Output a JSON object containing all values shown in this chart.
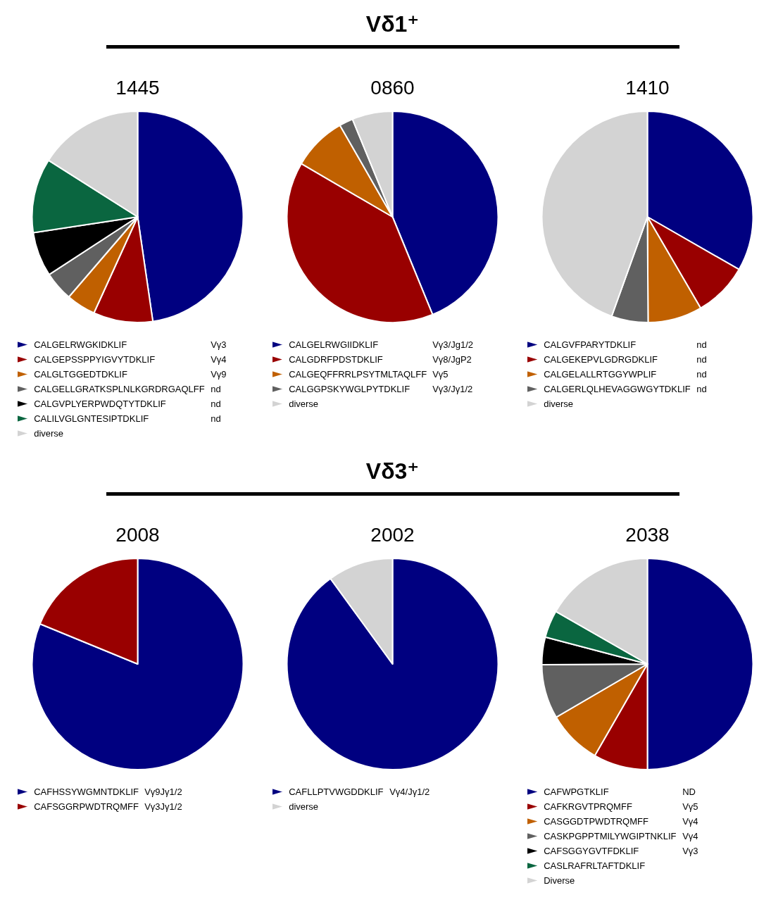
{
  "chart_data": [
    {
      "type": "pie",
      "title": "1445",
      "legend": "bottom",
      "categories": [
        "CALGELRWGKIDKLIF",
        "CALGEPSSPPYIGVYTDKLIF",
        "CALGLTGGEDTDKLIF",
        "CALGELLGRATKSPLNLKGRDRGAQLFF",
        "CALGVPLYERPWDQTYTDKLIF",
        "CALILVGLGNTESIPTDKLIF",
        "diverse"
      ],
      "values": [
        47.7,
        9.1,
        4.5,
        4.5,
        6.8,
        11.4,
        16.0
      ],
      "colors": [
        "#000080",
        "#990000",
        "#c06000",
        "#606060",
        "#000000",
        "#0a6640",
        "#d3d3d3"
      ],
      "annotations": [
        "Vγ3",
        "Vγ4",
        "Vγ9",
        "nd",
        "nd",
        "nd"
      ]
    },
    {
      "type": "pie",
      "subtitle": "Vδ1⁺",
      "title": "0860",
      "legend": "bottom",
      "categories": [
        "CALGELRWGIIDKLIF",
        "CALGDRFPDSTDKLIF",
        "CALGEQFFRRLPSYTMLTAQLFF",
        "CALGGPSKYWGLPYTDKLIF",
        "diverse"
      ],
      "values": [
        43.8,
        39.6,
        8.3,
        2.1,
        6.2
      ],
      "colors": [
        "#000080",
        "#990000",
        "#c06000",
        "#606060",
        "#d3d3d3"
      ],
      "annotations": [
        "Vγ3/Jg1/2",
        "Vγ8/JgP2",
        "Vγ5",
        "Vγ3/Jγ1/2"
      ]
    },
    {
      "type": "pie",
      "title": "1410",
      "legend": "bottom",
      "categories": [
        "CALGVFPARYTDKLIF",
        "CALGEKEPVLGDRGDKLIF",
        "CALGELALLRTGGYWPLIF",
        "CALGERLQLHEVAGGWGYTDKLIF",
        "diverse"
      ],
      "values": [
        33.3,
        8.3,
        8.3,
        5.6,
        44.5
      ],
      "colors": [
        "#000080",
        "#990000",
        "#c06000",
        "#606060",
        "#d3d3d3"
      ],
      "annotations": [
        "nd",
        "nd",
        "nd",
        "nd"
      ]
    },
    {
      "type": "pie",
      "title": "2008",
      "legend": "bottom",
      "categories": [
        "CAFHSSYWGMNTDKLIF",
        "CAFSGGRPWDTRQMFF"
      ],
      "values": [
        81.2,
        18.8
      ],
      "colors": [
        "#000080",
        "#990000"
      ],
      "annotations": [
        "Vγ9Jγ1/2",
        "Vγ3Jγ1/2"
      ]
    },
    {
      "type": "pie",
      "subtitle": "Vδ3⁺",
      "title": "2002",
      "legend": "bottom",
      "categories": [
        "CAFLLPTVWGDDKLIF",
        "diverse"
      ],
      "values": [
        90,
        10
      ],
      "colors": [
        "#000080",
        "#d3d3d3"
      ],
      "annotations": [
        "Vγ4/Jγ1/2"
      ]
    },
    {
      "type": "pie",
      "title": "2038",
      "legend": "bottom",
      "categories": [
        "CAFWPGTKLIF",
        "CAFKRGVTPRQMFF",
        "CASGGDTPWDTRQMFF",
        "CASKPGPPTMILYWGIPTNKLIF",
        "CAFSGGYGVTFDKLIF",
        "CASLRAFRLTAFTDKLIF",
        "Diverse"
      ],
      "values": [
        50,
        8.3,
        8.3,
        8.3,
        4.2,
        4.2,
        16.7
      ],
      "colors": [
        "#000080",
        "#990000",
        "#c06000",
        "#606060",
        "#000000",
        "#0a6640",
        "#d3d3d3"
      ],
      "annotations": [
        "ND",
        "Vγ5",
        "Vγ4",
        "Vγ4",
        "Vγ3"
      ]
    }
  ]
}
